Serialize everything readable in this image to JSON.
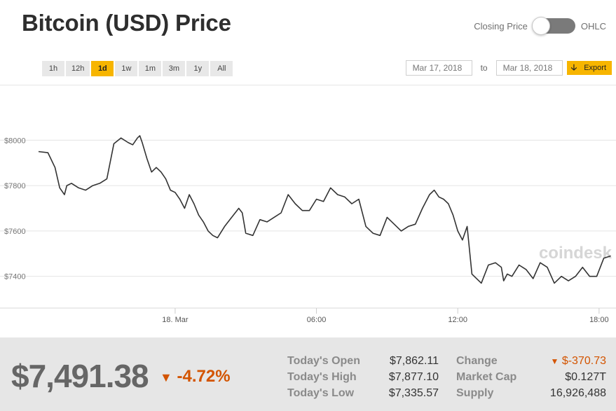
{
  "header": {
    "title": "Bitcoin (USD) Price",
    "toggle_left": "Closing Price",
    "toggle_right": "OHLC"
  },
  "ranges": [
    "1h",
    "12h",
    "1d",
    "1w",
    "1m",
    "3m",
    "1y",
    "All"
  ],
  "active_range": "1d",
  "dates": {
    "from": "Mar 17, 2018",
    "to_label": "to",
    "to": "Mar 18, 2018",
    "export_label": "Export",
    "export_icon": "down-arrow-icon"
  },
  "watermark": "coindesk",
  "chart_data": {
    "type": "line",
    "y_ticks": [
      "$8000",
      "$7800",
      "$7600",
      "$7400"
    ],
    "y_tick_values": [
      8000,
      7800,
      7600,
      7400
    ],
    "ylim": [
      7260,
      8180
    ],
    "x_ticks": [
      "18. Mar",
      "06:00",
      "12:00",
      "18:00"
    ],
    "x_tick_hours": [
      0,
      6,
      12,
      18
    ],
    "xlim": [
      -5.8,
      18.6
    ],
    "grid": "horizontal",
    "line_color": "#333333",
    "series": [
      {
        "x": [
          -5.8,
          -5.4,
          -5.1,
          -4.9,
          -4.7,
          -4.6,
          -4.4,
          -4.1,
          -3.8,
          -3.5,
          -3.2,
          -2.9,
          -2.6,
          -2.3,
          -2.0,
          -1.8,
          -1.6,
          -1.5,
          -1.4,
          -1.2,
          -1.0,
          -0.8,
          -0.6,
          -0.4,
          -0.2,
          0.0,
          0.2,
          0.4,
          0.6,
          0.8,
          1.0,
          1.2,
          1.4,
          1.6,
          1.8,
          2.1,
          2.4,
          2.7,
          2.85,
          3.0,
          3.3,
          3.6,
          3.9,
          4.2,
          4.5,
          4.8,
          5.1,
          5.4,
          5.7,
          6.0,
          6.3,
          6.6,
          6.9,
          7.2,
          7.5,
          7.8,
          8.1,
          8.4,
          8.7,
          9.0,
          9.3,
          9.6,
          9.9,
          10.2,
          10.5,
          10.8,
          11.0,
          11.2,
          11.4,
          11.6,
          11.8,
          12.0,
          12.2,
          12.4,
          12.6,
          12.8,
          13.0,
          13.3,
          13.6,
          13.85,
          13.95,
          14.1,
          14.3,
          14.6,
          14.9,
          15.2,
          15.5,
          15.8,
          16.1,
          16.4,
          16.7,
          17.0,
          17.3,
          17.6,
          17.9,
          18.2,
          18.5
        ],
        "y": [
          7950,
          7945,
          7880,
          7790,
          7760,
          7800,
          7810,
          7790,
          7780,
          7800,
          7810,
          7830,
          7985,
          8010,
          7990,
          7980,
          8010,
          8020,
          7990,
          7920,
          7860,
          7880,
          7860,
          7830,
          7780,
          7770,
          7740,
          7700,
          7760,
          7720,
          7670,
          7640,
          7600,
          7580,
          7570,
          7620,
          7660,
          7700,
          7680,
          7590,
          7580,
          7650,
          7640,
          7660,
          7680,
          7760,
          7720,
          7690,
          7690,
          7740,
          7730,
          7790,
          7760,
          7750,
          7720,
          7740,
          7620,
          7590,
          7580,
          7660,
          7630,
          7600,
          7620,
          7630,
          7700,
          7760,
          7780,
          7750,
          7740,
          7720,
          7670,
          7600,
          7560,
          7620,
          7410,
          7390,
          7370,
          7450,
          7460,
          7440,
          7380,
          7410,
          7400,
          7450,
          7430,
          7390,
          7460,
          7440,
          7370,
          7400,
          7380,
          7400,
          7440,
          7400,
          7400,
          7480,
          7490
        ]
      }
    ]
  },
  "stats": {
    "price": "$7,491.38",
    "change_pct": "-4.72%",
    "change_pct_icon": "down-triangle-icon",
    "rows": [
      {
        "label": "Today's Open",
        "value": "$7,862.11"
      },
      {
        "label": "Today's High",
        "value": "$7,877.10"
      },
      {
        "label": "Today's Low",
        "value": "$7,335.57"
      }
    ],
    "rows2": [
      {
        "label": "Change",
        "value": "$-370.73",
        "icon": "down-triangle-icon"
      },
      {
        "label": "Market Cap",
        "value": "$0.127T"
      },
      {
        "label": "Supply",
        "value": "16,926,488"
      }
    ]
  }
}
